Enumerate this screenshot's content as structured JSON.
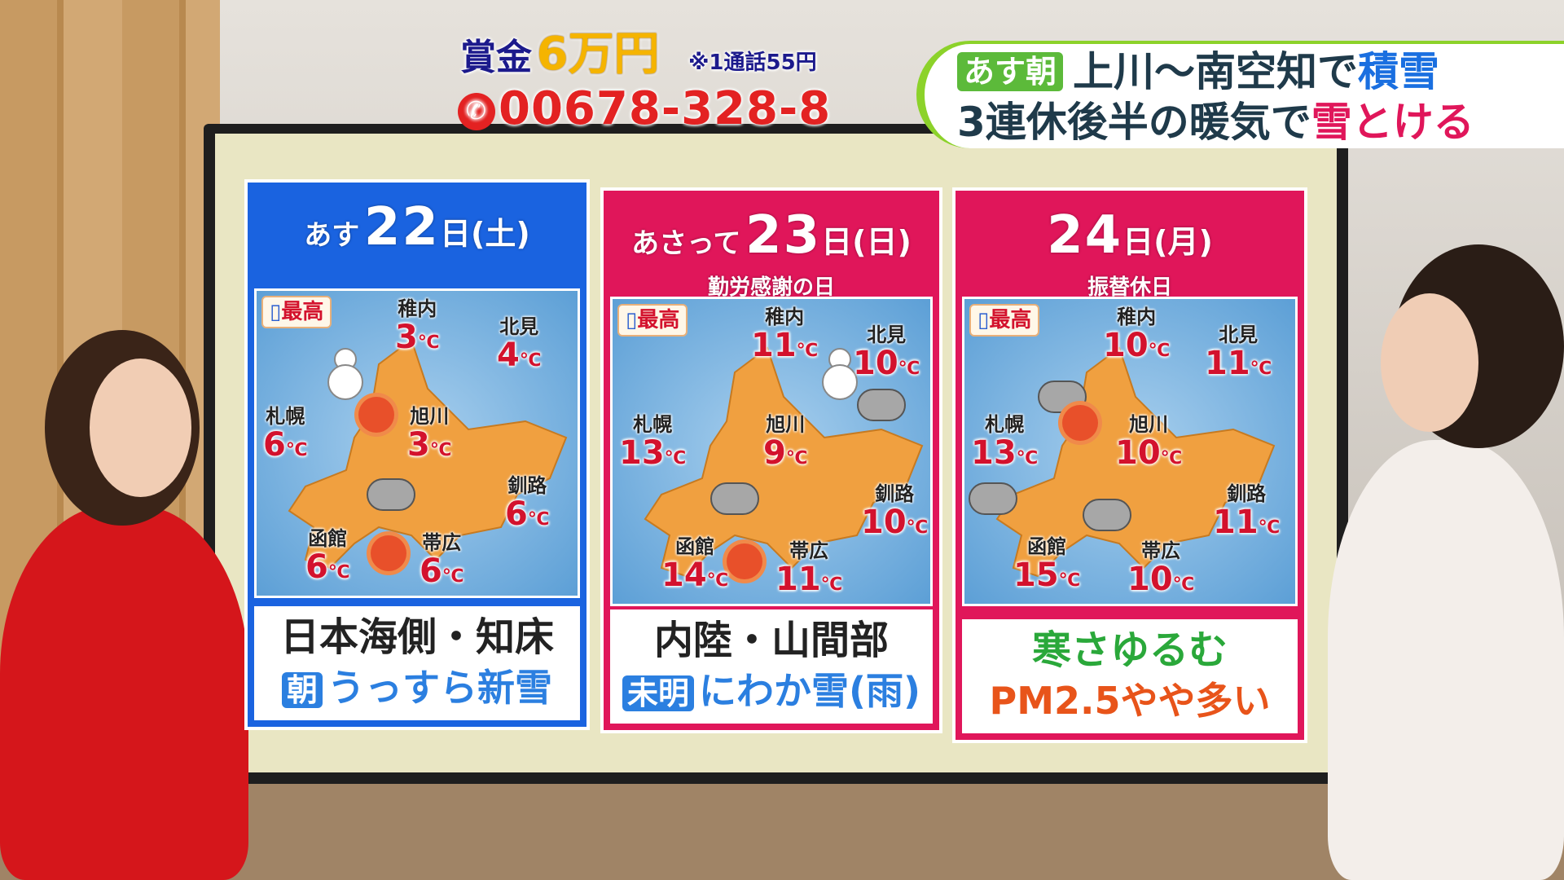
{
  "prize": {
    "label": "賞金",
    "amount": "6万円",
    "note": "※1通話55円",
    "phone": "00678-328-8",
    "phone_icon": "phone-icon"
  },
  "banner": {
    "tag": "あす朝",
    "line1_a": "上川〜南空知で",
    "line1_b": "積雪",
    "line2_a": "3連休後半の暖気で",
    "line2_b": "雪とける"
  },
  "max_label": "最高",
  "unit": "℃",
  "days": [
    {
      "pre": "あす",
      "num": "22",
      "day": "日",
      "dow": "(土)",
      "sub": "",
      "color": "#1a63e0",
      "cities": [
        {
          "name": "稚内",
          "temp": "3"
        },
        {
          "name": "北見",
          "temp": "4"
        },
        {
          "name": "札幌",
          "temp": "6"
        },
        {
          "name": "旭川",
          "temp": "3"
        },
        {
          "name": "釧路",
          "temp": "6"
        },
        {
          "name": "函館",
          "temp": "6"
        },
        {
          "name": "帯広",
          "temp": "6"
        }
      ],
      "foot1": "日本海側・知床",
      "foot_badge": "朝",
      "foot2": "うっすら新雪"
    },
    {
      "pre": "あさって",
      "num": "23",
      "day": "日",
      "dow": "(日)",
      "sub": "勤労感謝の日",
      "color": "#e0165a",
      "cities": [
        {
          "name": "稚内",
          "temp": "11"
        },
        {
          "name": "札幌",
          "temp": "13"
        },
        {
          "name": "旭川",
          "temp": "9"
        },
        {
          "name": "北見",
          "temp": "10"
        },
        {
          "name": "釧路",
          "temp": "10"
        },
        {
          "name": "函館",
          "temp": "14"
        },
        {
          "name": "帯広",
          "temp": "11"
        }
      ],
      "foot1": "内陸・山間部",
      "foot_badge": "未明",
      "foot2": "にわか雪(雨)"
    },
    {
      "pre": "",
      "num": "24",
      "day": "日",
      "dow": "(月)",
      "sub": "振替休日",
      "color": "#e0165a",
      "cities": [
        {
          "name": "稚内",
          "temp": "10"
        },
        {
          "name": "札幌",
          "temp": "13"
        },
        {
          "name": "旭川",
          "temp": "10"
        },
        {
          "name": "北見",
          "temp": "11"
        },
        {
          "name": "釧路",
          "temp": "11"
        },
        {
          "name": "函館",
          "temp": "15"
        },
        {
          "name": "帯広",
          "temp": "10"
        }
      ],
      "foot1": "寒さゆるむ",
      "foot2": "PM2.5やや多い"
    }
  ]
}
